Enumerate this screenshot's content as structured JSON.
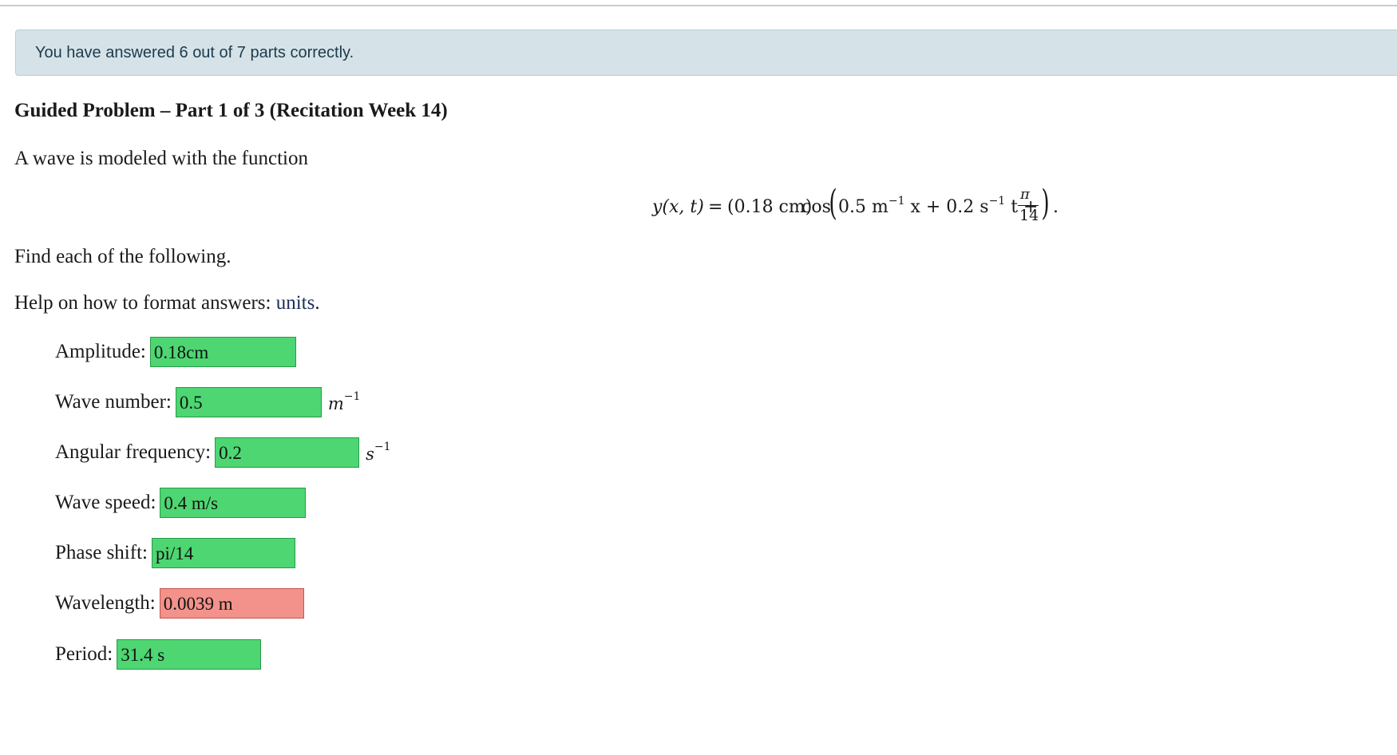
{
  "alert": {
    "text": "You have answered 6 out of 7 parts correctly."
  },
  "problem": {
    "title": "Guided Problem – Part 1 of 3 (Recitation Week 14)",
    "intro": "A wave is modeled with the function",
    "find_text": "Find each of the following.",
    "help_prefix": "Help on how to format answers: ",
    "help_link": "units",
    "help_suffix": "."
  },
  "equation": {
    "lhs": "y(x, t)",
    "equals": "=",
    "amp": "(0.18 cm)",
    "func": "cos",
    "k_value": "0.5 m",
    "k_exp": "−1",
    "x_var": " x + 0.2 s",
    "w_exp": "−1",
    "t_var": " t +",
    "frac_num": "π",
    "frac_den": "14",
    "end": "."
  },
  "fields": [
    {
      "label": "Amplitude:",
      "value": "0.18cm",
      "unit": "",
      "unit_exp": "",
      "status": "correct"
    },
    {
      "label": "Wave number:",
      "value": "0.5",
      "unit": "m",
      "unit_exp": "−1",
      "status": "correct"
    },
    {
      "label": "Angular frequency:",
      "value": "0.2",
      "unit": "s",
      "unit_exp": "−1",
      "status": "correct"
    },
    {
      "label": "Wave speed:",
      "value": "0.4 m/s",
      "unit": "",
      "unit_exp": "",
      "status": "correct"
    },
    {
      "label": "Phase shift:",
      "value": "pi/14",
      "unit": "",
      "unit_exp": "",
      "status": "correct"
    },
    {
      "label": "Wavelength:",
      "value": "0.0039 m",
      "unit": "",
      "unit_exp": "",
      "status": "incorrect"
    },
    {
      "label": "Period:",
      "value": "31.4 s",
      "unit": "",
      "unit_exp": "",
      "status": "correct"
    }
  ],
  "colors": {
    "correct": "#4dd672",
    "incorrect": "#f2928a",
    "alert_bg": "#d5e3e9"
  }
}
